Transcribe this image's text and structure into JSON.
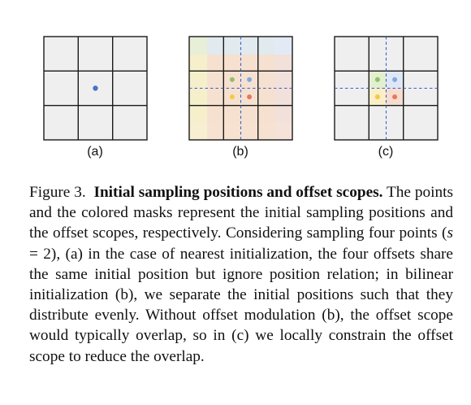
{
  "figure": {
    "panels": [
      {
        "label": "(a)",
        "mode": "single-point"
      },
      {
        "label": "(b)",
        "mode": "bilinear-overlapping-scopes"
      },
      {
        "label": "(c)",
        "mode": "bilinear-constrained-scopes"
      }
    ],
    "point_colors": {
      "single": "#4a72c8",
      "green": "#8fc16a",
      "blue": "#82a8e2",
      "yellow": "#f3c94a",
      "red": "#e8795a"
    },
    "mask_colors": {
      "green": "#e3efcf",
      "blue": "#dfe7f6",
      "yellow": "#fbefc6",
      "red": "#f7ddd0"
    },
    "grid_colors": {
      "cell_fill": "#efefef",
      "grid_line": "#1a1a1a",
      "dashed_line": "#3a5fc9"
    }
  },
  "caption": {
    "prefix": "Figure 3.",
    "title": "Initial sampling positions and offset scopes.",
    "body_pre": "The points and the colored masks represent the initial sampling positions and the offset scopes, respectively. Considering sampling four points (",
    "math": "s",
    "body_eq": " = 2), (a) in the case of nearest initialization, the four offsets share the same initial position but ignore position relation; in bilinear initialization (b), we separate the initial positions such that they distribute evenly. Without offset modulation (b), the offset scope would typically overlap, so in (c) we locally constrain the offset scope to reduce the overlap."
  }
}
